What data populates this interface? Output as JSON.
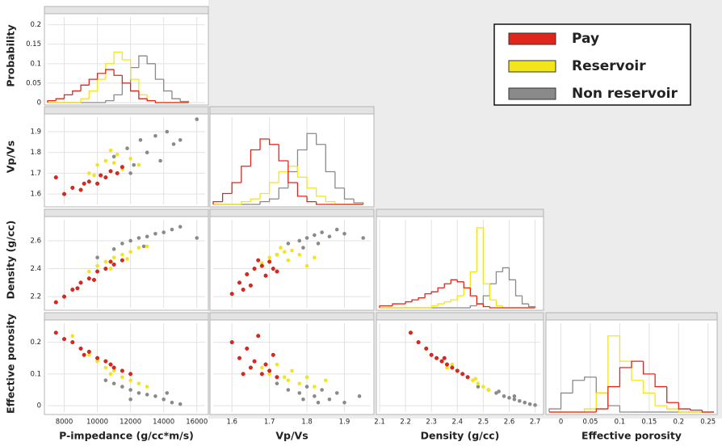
{
  "chart_data": [
    {
      "type": "histogram",
      "ylabel": "Probability",
      "bins": [
        7000,
        7500,
        8000,
        8500,
        9000,
        9500,
        10000,
        10500,
        11000,
        11500,
        12000,
        12500,
        13000,
        13500,
        14000,
        14500,
        15000,
        15500
      ],
      "xlim": [
        7000,
        16500
      ],
      "ylim": [
        0,
        0.22
      ],
      "yticks": [
        0,
        0.05,
        0.1,
        0.15,
        0.2
      ],
      "series": [
        {
          "name": "Pay",
          "color": "#e0261b",
          "values": [
            0.005,
            0.01,
            0.02,
            0.03,
            0.045,
            0.06,
            0.075,
            0.085,
            0.07,
            0.05,
            0.03,
            0.01,
            0.005,
            0,
            0,
            0,
            0
          ]
        },
        {
          "name": "Reservoir",
          "color": "#f2e51c",
          "values": [
            0,
            0,
            0,
            0,
            0.01,
            0.03,
            0.06,
            0.1,
            0.13,
            0.11,
            0.06,
            0.02,
            0.005,
            0,
            0,
            0,
            0
          ]
        },
        {
          "name": "Non reservoir",
          "color": "#8a8a8a",
          "values": [
            0,
            0,
            0,
            0,
            0,
            0,
            0,
            0.005,
            0.02,
            0.05,
            0.09,
            0.12,
            0.1,
            0.06,
            0.03,
            0.01,
            0.003
          ]
        }
      ]
    },
    {
      "type": "scatter",
      "ylabel": "Vp/Vs",
      "xlim": [
        7000,
        16500
      ],
      "ylim": [
        1.55,
        1.97
      ],
      "yticks": [
        1.6,
        1.7,
        1.8,
        1.9
      ],
      "series": [
        {
          "name": "Pay",
          "color": "#e0261b",
          "x": [
            8000,
            8500,
            9000,
            9500,
            10000,
            10200,
            10500,
            10800,
            11200,
            11500,
            7500,
            9200
          ],
          "values": [
            1.6,
            1.63,
            1.62,
            1.66,
            1.65,
            1.69,
            1.68,
            1.71,
            1.7,
            1.73,
            1.68,
            1.65
          ]
        },
        {
          "name": "Reservoir",
          "color": "#f2e51c",
          "x": [
            9500,
            10000,
            10500,
            11000,
            11200,
            11500,
            12000,
            10800,
            12500,
            9800
          ],
          "values": [
            1.7,
            1.74,
            1.76,
            1.75,
            1.79,
            1.72,
            1.77,
            1.81,
            1.74,
            1.69
          ]
        },
        {
          "name": "Non reservoir",
          "color": "#8a8a8a",
          "x": [
            11000,
            11800,
            12200,
            12600,
            13000,
            13500,
            13800,
            14200,
            14600,
            12000,
            15000,
            16000
          ],
          "values": [
            1.78,
            1.82,
            1.74,
            1.86,
            1.8,
            1.88,
            1.76,
            1.9,
            1.84,
            1.7,
            1.86,
            1.96
          ]
        }
      ]
    },
    {
      "type": "histogram",
      "bins": [
        1.55,
        1.575,
        1.6,
        1.625,
        1.65,
        1.675,
        1.7,
        1.725,
        1.75,
        1.775,
        1.8,
        1.825,
        1.85,
        1.875,
        1.9,
        1.925,
        1.95
      ],
      "xlim": [
        1.55,
        1.97
      ],
      "ylim": [
        0,
        0.16
      ],
      "series": [
        {
          "name": "Pay",
          "color": "#e0261b",
          "values": [
            0.005,
            0.02,
            0.04,
            0.07,
            0.1,
            0.12,
            0.11,
            0.08,
            0.04,
            0.015,
            0.005,
            0,
            0,
            0,
            0,
            0
          ]
        },
        {
          "name": "Reservoir",
          "color": "#f2e51c",
          "values": [
            0,
            0,
            0,
            0.005,
            0.01,
            0.02,
            0.04,
            0.06,
            0.07,
            0.05,
            0.03,
            0.015,
            0.005,
            0,
            0,
            0
          ]
        },
        {
          "name": "Non reservoir",
          "color": "#8a8a8a",
          "values": [
            0,
            0,
            0,
            0,
            0,
            0.005,
            0.01,
            0.03,
            0.06,
            0.1,
            0.13,
            0.11,
            0.06,
            0.03,
            0.01,
            0.003
          ]
        }
      ]
    },
    {
      "type": "scatter",
      "ylabel": "Density (g/cc)",
      "xlim": [
        7000,
        16500
      ],
      "ylim": [
        2.12,
        2.75
      ],
      "yticks": [
        2.2,
        2.4,
        2.6
      ],
      "series": [
        {
          "name": "Pay",
          "color": "#e0261b",
          "x": [
            7500,
            8000,
            8500,
            9000,
            9500,
            10000,
            10500,
            11000,
            11500,
            9800,
            10800,
            8800
          ],
          "values": [
            2.16,
            2.2,
            2.25,
            2.3,
            2.33,
            2.38,
            2.4,
            2.43,
            2.46,
            2.32,
            2.45,
            2.26
          ]
        },
        {
          "name": "Reservoir",
          "color": "#f2e51c",
          "x": [
            9500,
            10000,
            10500,
            11000,
            11500,
            12000,
            12500,
            10800,
            11800,
            13000
          ],
          "values": [
            2.38,
            2.42,
            2.45,
            2.48,
            2.5,
            2.52,
            2.55,
            2.4,
            2.47,
            2.56
          ]
        },
        {
          "name": "Non reservoir",
          "color": "#8a8a8a",
          "x": [
            10000,
            11000,
            11500,
            12000,
            12500,
            13000,
            13500,
            14000,
            14500,
            12800,
            15000,
            16000
          ],
          "values": [
            2.48,
            2.54,
            2.58,
            2.6,
            2.62,
            2.63,
            2.65,
            2.66,
            2.68,
            2.56,
            2.7,
            2.62
          ]
        }
      ]
    },
    {
      "type": "scatter",
      "xlim": [
        1.55,
        1.97
      ],
      "ylim": [
        2.12,
        2.75
      ],
      "series": [
        {
          "name": "Pay",
          "color": "#e0261b",
          "x": [
            1.6,
            1.62,
            1.64,
            1.65,
            1.66,
            1.68,
            1.69,
            1.7,
            1.72,
            1.67,
            1.63,
            1.71
          ],
          "values": [
            2.22,
            2.3,
            2.36,
            2.28,
            2.4,
            2.42,
            2.35,
            2.45,
            2.38,
            2.46,
            2.25,
            2.4
          ]
        },
        {
          "name": "Reservoir",
          "color": "#f2e51c",
          "x": [
            1.68,
            1.7,
            1.72,
            1.74,
            1.75,
            1.76,
            1.78,
            1.8,
            1.73,
            1.82
          ],
          "values": [
            2.44,
            2.48,
            2.5,
            2.52,
            2.46,
            2.53,
            2.5,
            2.42,
            2.55,
            2.48
          ]
        },
        {
          "name": "Non reservoir",
          "color": "#8a8a8a",
          "x": [
            1.72,
            1.75,
            1.78,
            1.8,
            1.82,
            1.84,
            1.86,
            1.88,
            1.9,
            1.79,
            1.95,
            1.83
          ],
          "values": [
            2.5,
            2.58,
            2.6,
            2.62,
            2.64,
            2.66,
            2.63,
            2.68,
            2.65,
            2.55,
            2.62,
            2.58
          ]
        }
      ]
    },
    {
      "type": "histogram",
      "bins": [
        2.1,
        2.125,
        2.15,
        2.175,
        2.2,
        2.225,
        2.25,
        2.275,
        2.3,
        2.325,
        2.35,
        2.375,
        2.4,
        2.425,
        2.45,
        2.475,
        2.5,
        2.525,
        2.55,
        2.575,
        2.6,
        2.625,
        2.65,
        2.675,
        2.7
      ],
      "xlim": [
        2.1,
        2.72
      ],
      "ylim": [
        0,
        0.22
      ],
      "series": [
        {
          "name": "Pay",
          "color": "#e0261b",
          "values": [
            0.005,
            0.005,
            0.01,
            0.01,
            0.015,
            0.02,
            0.025,
            0.035,
            0.04,
            0.05,
            0.06,
            0.07,
            0.065,
            0.05,
            0.03,
            0.01,
            0.003,
            0,
            0,
            0,
            0,
            0,
            0,
            0
          ]
        },
        {
          "name": "Reservoir",
          "color": "#f2e51c",
          "values": [
            0,
            0,
            0,
            0,
            0,
            0,
            0,
            0,
            0.005,
            0.01,
            0.015,
            0.02,
            0.03,
            0.05,
            0.09,
            0.2,
            0.06,
            0.02,
            0.005,
            0,
            0,
            0,
            0,
            0
          ]
        },
        {
          "name": "Non reservoir",
          "color": "#8a8a8a",
          "values": [
            0,
            0,
            0,
            0,
            0,
            0,
            0,
            0,
            0,
            0,
            0,
            0,
            0,
            0,
            0.005,
            0.01,
            0.03,
            0.06,
            0.09,
            0.1,
            0.07,
            0.03,
            0.01,
            0.003
          ]
        }
      ]
    },
    {
      "type": "scatter",
      "ylabel": "Effective porosity",
      "xlabel": "P-impedance (g/cc*m/s)",
      "xlim": [
        7000,
        16500
      ],
      "ylim": [
        -0.02,
        0.26
      ],
      "xticks": [
        8000,
        10000,
        12000,
        14000,
        16000
      ],
      "yticks": [
        0,
        0.1,
        0.2
      ],
      "series": [
        {
          "name": "Pay",
          "color": "#e0261b",
          "x": [
            7500,
            8000,
            8500,
            9000,
            9500,
            10000,
            10500,
            11000,
            11500,
            9200,
            10800,
            12000
          ],
          "values": [
            0.23,
            0.21,
            0.2,
            0.18,
            0.17,
            0.15,
            0.14,
            0.12,
            0.11,
            0.16,
            0.13,
            0.1
          ]
        },
        {
          "name": "Reservoir",
          "color": "#f2e51c",
          "x": [
            8500,
            9500,
            10000,
            10500,
            11000,
            11500,
            12000,
            12500,
            13000,
            10800
          ],
          "values": [
            0.22,
            0.16,
            0.14,
            0.12,
            0.11,
            0.09,
            0.08,
            0.07,
            0.06,
            0.1
          ]
        },
        {
          "name": "Non reservoir",
          "color": "#8a8a8a",
          "x": [
            10500,
            11000,
            11500,
            12000,
            12500,
            13000,
            13500,
            14000,
            14500,
            15000,
            12000,
            14200
          ],
          "values": [
            0.08,
            0.07,
            0.06,
            0.05,
            0.04,
            0.035,
            0.03,
            0.02,
            0.01,
            0.005,
            0.02,
            0.04
          ]
        }
      ]
    },
    {
      "type": "scatter",
      "xlabel": "Vp/Vs",
      "xlim": [
        1.55,
        1.97
      ],
      "ylim": [
        -0.02,
        0.26
      ],
      "xticks": [
        1.6,
        1.7,
        1.8,
        1.9
      ],
      "series": [
        {
          "name": "Pay",
          "color": "#e0261b",
          "x": [
            1.6,
            1.62,
            1.64,
            1.65,
            1.66,
            1.67,
            1.68,
            1.69,
            1.7,
            1.72,
            1.63,
            1.71
          ],
          "values": [
            0.2,
            0.15,
            0.18,
            0.12,
            0.14,
            0.22,
            0.1,
            0.13,
            0.11,
            0.09,
            0.1,
            0.16
          ]
        },
        {
          "name": "Reservoir",
          "color": "#f2e51c",
          "x": [
            1.68,
            1.7,
            1.72,
            1.74,
            1.75,
            1.76,
            1.78,
            1.8,
            1.82,
            1.85
          ],
          "values": [
            0.12,
            0.1,
            0.13,
            0.09,
            0.08,
            0.11,
            0.07,
            0.09,
            0.06,
            0.08
          ]
        },
        {
          "name": "Non reservoir",
          "color": "#8a8a8a",
          "x": [
            1.72,
            1.75,
            1.78,
            1.8,
            1.82,
            1.84,
            1.86,
            1.88,
            1.9,
            1.79,
            1.94,
            1.83
          ],
          "values": [
            0.07,
            0.05,
            0.04,
            0.06,
            0.03,
            0.05,
            0.02,
            0.04,
            0.01,
            0.02,
            0.03,
            0.01
          ]
        }
      ]
    },
    {
      "type": "scatter",
      "xlabel": "Density (g/cc)",
      "xlim": [
        2.1,
        2.72
      ],
      "ylim": [
        -0.02,
        0.26
      ],
      "xticks": [
        2.1,
        2.2,
        2.3,
        2.4,
        2.5,
        2.6,
        2.7
      ],
      "series": [
        {
          "name": "Pay",
          "color": "#e0261b",
          "x": [
            2.22,
            2.25,
            2.28,
            2.3,
            2.32,
            2.34,
            2.36,
            2.38,
            2.4,
            2.42,
            2.44,
            2.35
          ],
          "values": [
            0.23,
            0.2,
            0.18,
            0.16,
            0.15,
            0.14,
            0.13,
            0.12,
            0.11,
            0.1,
            0.09,
            0.15
          ]
        },
        {
          "name": "Reservoir",
          "color": "#f2e51c",
          "x": [
            2.36,
            2.4,
            2.44,
            2.46,
            2.48,
            2.5,
            2.42,
            2.38,
            2.52,
            2.47
          ],
          "values": [
            0.12,
            0.11,
            0.09,
            0.08,
            0.07,
            0.06,
            0.1,
            0.13,
            0.05,
            0.085
          ]
        },
        {
          "name": "Non reservoir",
          "color": "#8a8a8a",
          "x": [
            2.48,
            2.52,
            2.55,
            2.58,
            2.6,
            2.62,
            2.64,
            2.66,
            2.68,
            2.7,
            2.56,
            2.62
          ],
          "values": [
            0.06,
            0.05,
            0.04,
            0.03,
            0.025,
            0.02,
            0.015,
            0.01,
            0.005,
            0.002,
            0.045,
            0.03
          ]
        }
      ]
    },
    {
      "type": "histogram",
      "xlabel": "Effective porosity",
      "bins": [
        -0.02,
        0,
        0.02,
        0.04,
        0.06,
        0.08,
        0.1,
        0.12,
        0.14,
        0.16,
        0.18,
        0.2,
        0.22,
        0.24,
        0.26
      ],
      "xlim": [
        -0.02,
        0.26
      ],
      "ylim": [
        0,
        0.14
      ],
      "xticks": [
        0,
        0.05,
        0.1,
        0.15,
        0.2,
        0.25
      ],
      "series": [
        {
          "name": "Pay",
          "color": "#e0261b",
          "values": [
            0,
            0,
            0,
            0,
            0.005,
            0.04,
            0.07,
            0.08,
            0.06,
            0.04,
            0.015,
            0.005,
            0.003,
            0
          ]
        },
        {
          "name": "Reservoir",
          "color": "#f2e51c",
          "values": [
            0,
            0,
            0,
            0.005,
            0.03,
            0.12,
            0.08,
            0.05,
            0.03,
            0.01,
            0.005,
            0,
            0,
            0
          ]
        },
        {
          "name": "Non reservoir",
          "color": "#8a8a8a",
          "values": [
            0.005,
            0.03,
            0.05,
            0.055,
            0.03,
            0.01,
            0,
            0,
            0,
            0,
            0,
            0,
            0,
            0
          ]
        }
      ]
    }
  ]
}
